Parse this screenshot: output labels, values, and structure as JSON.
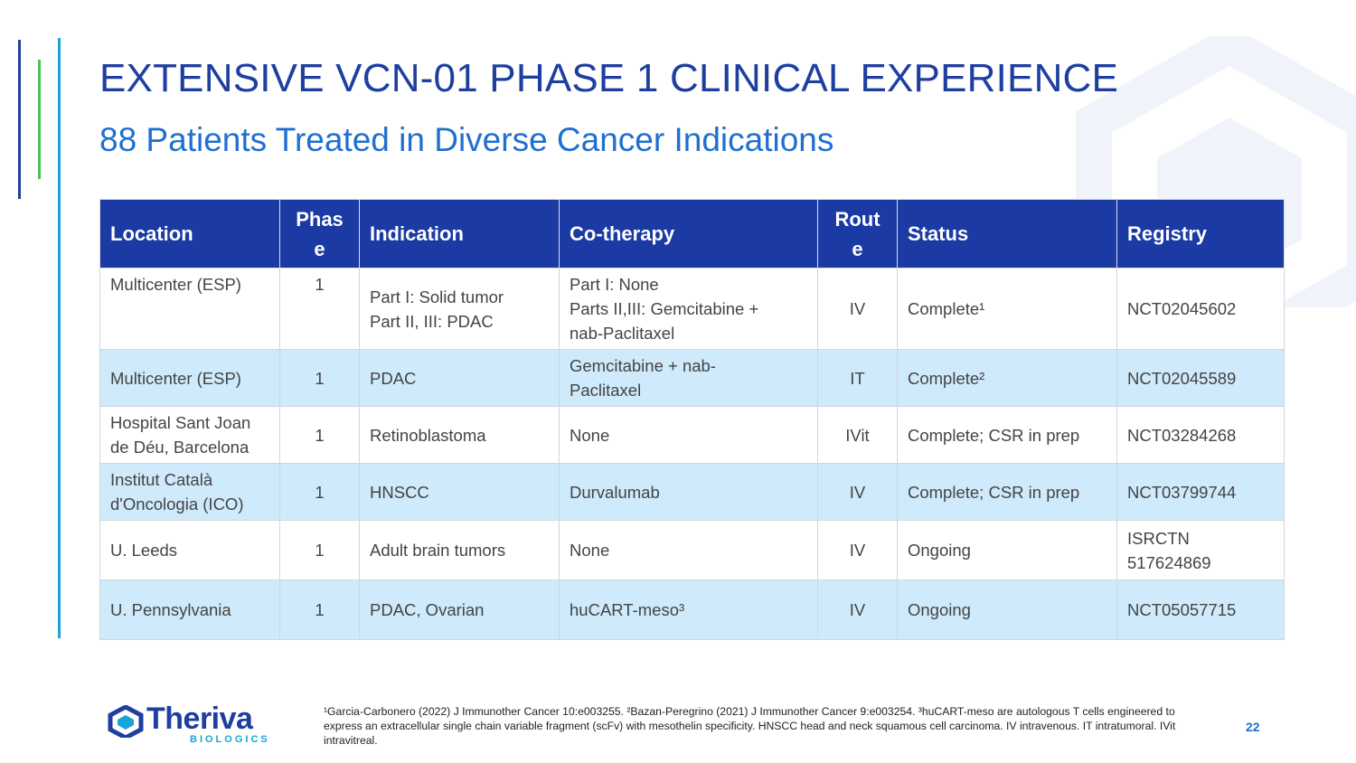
{
  "slide": {
    "title": "EXTENSIVE VCN-01 PHASE 1 CLINICAL EXPERIENCE",
    "subtitle": "88 Patients Treated in Diverse Cancer Indications",
    "page_number": "22"
  },
  "table": {
    "headers": {
      "location": "Location",
      "phase": "Phas\ne",
      "indication": "Indication",
      "cotherapy": "Co-therapy",
      "route": "Rout\ne",
      "status": "Status",
      "registry": "Registry"
    },
    "rows": [
      {
        "location": "Multicenter (ESP)",
        "phase": "1",
        "indication": "Part I: Solid tumor\nPart II, III: PDAC",
        "cotherapy": "Part I: None\nParts II,III: Gemcitabine +\nnab-Paclitaxel",
        "route": "IV",
        "status": "Complete¹",
        "registry": "NCT02045602"
      },
      {
        "location": "Multicenter (ESP)",
        "phase": "1",
        "indication": "PDAC",
        "cotherapy": "Gemcitabine + nab-\nPaclitaxel",
        "route": "IT",
        "status": "Complete²",
        "registry": "NCT02045589"
      },
      {
        "location": "Hospital Sant Joan\nde Déu, Barcelona",
        "phase": "1",
        "indication": "Retinoblastoma",
        "cotherapy": "None",
        "route": "IVit",
        "status": "Complete; CSR in prep",
        "registry": "NCT03284268"
      },
      {
        "location": "Institut Català\nd'Oncologia (ICO)",
        "phase": "1",
        "indication": "HNSCC",
        "cotherapy": "Durvalumab",
        "route": "IV",
        "status": "Complete; CSR in prep",
        "registry": "NCT03799744"
      },
      {
        "location": "U. Leeds",
        "phase": "1",
        "indication": "Adult brain tumors",
        "cotherapy": "None",
        "route": "IV",
        "status": "Ongoing",
        "registry": "ISRCTN\n517624869"
      },
      {
        "location": "U. Pennsylvania",
        "phase": "1",
        "indication": "PDAC, Ovarian",
        "cotherapy": "huCART-meso³",
        "route": "IV",
        "status": "Ongoing",
        "registry": "NCT05057715"
      }
    ]
  },
  "logo": {
    "name": "Theriva",
    "sub": "BIOLOGICS"
  },
  "footnote": "¹Garcia-Carbonero (2022) J Immunother Cancer 10:e003255. ²Bazan-Peregrino (2021) J Immunother Cancer 9:e003254. ³huCART-meso are autologous T cells engineered to express an extracellular single chain variable fragment (scFv) with mesothelin specificity. HNSCC head and neck squamous cell carcinoma. IV intravenous. IT intratumoral. IVit intravitreal.",
  "colors": {
    "title": "#1e3fa0",
    "subtitle": "#1f6fd0",
    "header_bg": "#1b3aa3",
    "alt_row_bg": "#cfeafa",
    "accent_green": "#49c25a",
    "accent_cyan": "#1aa3d9"
  }
}
